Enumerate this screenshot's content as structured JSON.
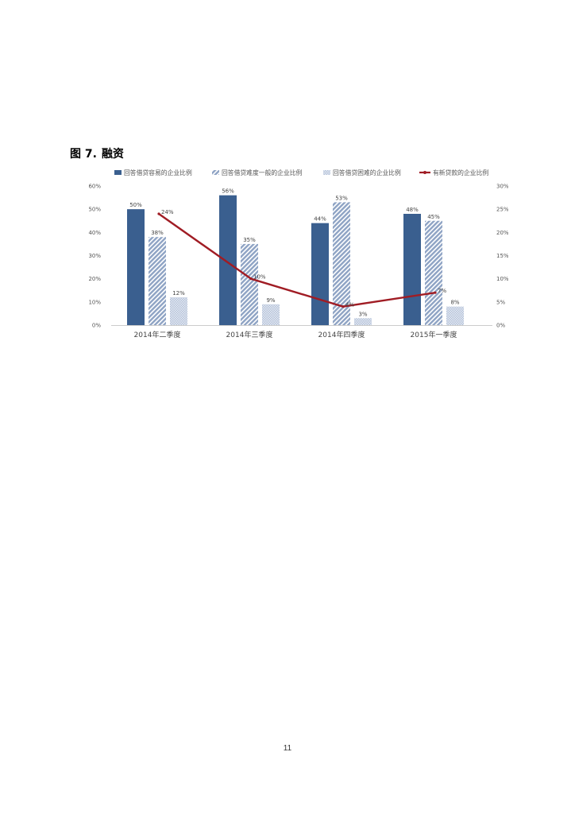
{
  "figure": {
    "label": "图 7.",
    "title": "融资"
  },
  "page_number": "11",
  "colors": {
    "bar_easy": "#3a5f8f",
    "bar_normal": "#9fb2cf",
    "bar_hard": "#c9d4e4",
    "line_new_loans": "#a01c24",
    "axis_text": "#555555",
    "gridline": "#e8e8e8"
  },
  "chart_data": {
    "type": "bar",
    "categories": [
      "2014年二季度",
      "2014年三季度",
      "2014年四季度",
      "2015年一季度"
    ],
    "series": [
      {
        "name": "回答借贷容易的企业比例",
        "kind": "bar",
        "pattern": "solid",
        "axis": "left",
        "values": [
          50,
          56,
          44,
          48
        ],
        "labels": [
          "50%",
          "56%",
          "44%",
          "48%"
        ]
      },
      {
        "name": "回答借贷难度一般的企业比例",
        "kind": "bar",
        "pattern": "diagonal-stripes",
        "axis": "left",
        "values": [
          38,
          35,
          53,
          45
        ],
        "labels": [
          "38%",
          "35%",
          "53%",
          "45%"
        ]
      },
      {
        "name": "回答借贷困难的企业比例",
        "kind": "bar",
        "pattern": "dots",
        "axis": "left",
        "values": [
          12,
          9,
          3,
          8
        ],
        "labels": [
          "12%",
          "9%",
          "3%",
          "8%"
        ]
      },
      {
        "name": "有新贷款的企业比例",
        "kind": "line",
        "axis": "right",
        "values": [
          24,
          10,
          4,
          7
        ],
        "labels": [
          "24%",
          "10%",
          "4%",
          "7%"
        ]
      }
    ],
    "y_left": {
      "ylim": [
        0,
        60
      ],
      "ticks": [
        "0%",
        "10%",
        "20%",
        "30%",
        "40%",
        "50%",
        "60%"
      ]
    },
    "y_right": {
      "ylim": [
        0,
        30
      ],
      "ticks": [
        "0%",
        "5%",
        "10%",
        "15%",
        "20%",
        "25%",
        "30%"
      ]
    },
    "legend_position": "top",
    "grid": false
  }
}
